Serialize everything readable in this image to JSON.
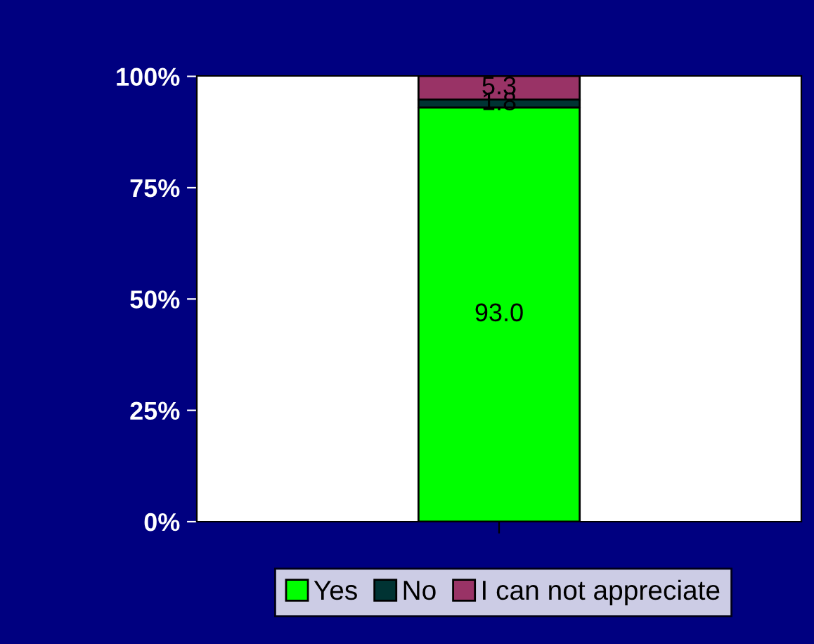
{
  "chart_data": {
    "type": "bar",
    "stacked": true,
    "categories": [
      null
    ],
    "series": [
      {
        "name": "Yes",
        "color": "#00ff00",
        "values": [
          93.0
        ],
        "value_labels": [
          "93.0"
        ]
      },
      {
        "name": "No",
        "color": "#003333",
        "values": [
          1.8
        ],
        "value_labels": [
          "1.8"
        ]
      },
      {
        "name": "I can not appreciate",
        "color": "#993366",
        "values": [
          5.3
        ],
        "value_labels": [
          "5.3"
        ]
      }
    ],
    "ylim": [
      0,
      100.1
    ],
    "yticks": [
      {
        "value": 0,
        "label": "0%"
      },
      {
        "value": 25,
        "label": "25%"
      },
      {
        "value": 50,
        "label": "50%"
      },
      {
        "value": 75,
        "label": "75%"
      },
      {
        "value": 100,
        "label": "100%"
      }
    ],
    "grid": false,
    "legend": "bottom"
  }
}
